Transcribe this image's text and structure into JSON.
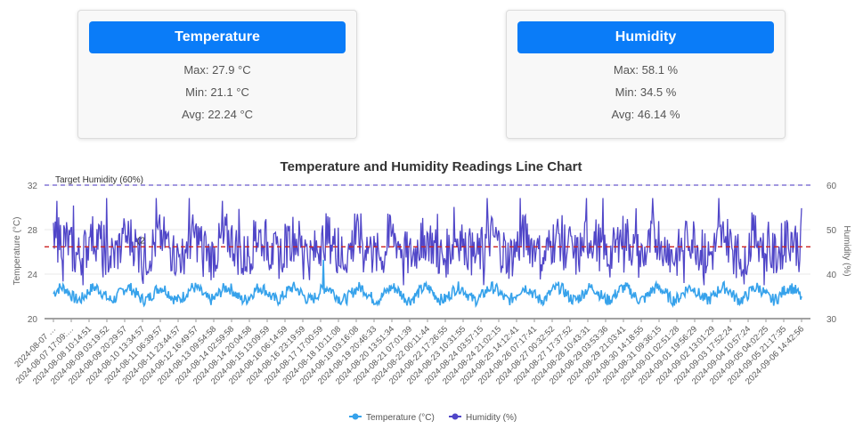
{
  "temperature_card": {
    "title": "Temperature",
    "max": "Max: 27.9 °C",
    "min": "Min: 21.1 °C",
    "avg": "Avg: 22.24 °C"
  },
  "humidity_card": {
    "title": "Humidity",
    "max": "Max: 58.1 %",
    "min": "Min: 34.5 %",
    "avg": "Avg: 46.14 %"
  },
  "colors": {
    "button": "#0a7cf8",
    "temperature": "#36a2eb",
    "humidity": "#5046c8",
    "target_line": "#6a5acd",
    "avg_line": "#cc2222"
  },
  "chart_data": {
    "type": "line",
    "title": "Temperature and Humidity Readings Line Chart",
    "ylabel_left": "Temperature (°C)",
    "ylabel_right": "Humidity (%)",
    "y_left_ticks": [
      20,
      24,
      28,
      32
    ],
    "y_right_ticks": [
      30,
      40,
      50,
      60
    ],
    "ylim_left": [
      20,
      32
    ],
    "ylim_right": [
      30,
      60
    ],
    "target_humidity": 60,
    "target_label": "Target Humidity (60%)",
    "avg_humidity": 46.14,
    "avg_marker_text": "(2",
    "categories": [
      "2024-08-07 …",
      "2024-08-07 17:09:…",
      "2024-08-08 10:14:51",
      "2024-08-09 03:19:52",
      "2024-08-09 20:29:57",
      "2024-08-10 13:34:57",
      "2024-08-11 06:39:57",
      "2024-08-11 23:44:57",
      "2024-08-12 16:49:57",
      "2024-08-13 09:54:58",
      "2024-08-14 02:59:58",
      "2024-08-14 20:04:58",
      "2024-08-15 13:09:59",
      "2024-08-16 06:14:59",
      "2024-08-16 23:19:59",
      "2024-08-17 17:00:59",
      "2024-08-18 10:11:08",
      "2024-08-19 03:16:08",
      "2024-08-19 20:46:33",
      "2024-08-20 13:51:34",
      "2024-08-21 07:01:39",
      "2024-08-22 00:11:44",
      "2024-08-22 17:26:55",
      "2024-08-23 10:31:55",
      "2024-08-24 03:57:15",
      "2024-08-24 21:02:15",
      "2024-08-25 14:12:41",
      "2024-08-26 07:17:41",
      "2024-08-27 00:32:52",
      "2024-08-27 17:37:52",
      "2024-08-28 10:43:31",
      "2024-08-29 03:53:36",
      "2024-08-29 21:03:41",
      "2024-08-30 14:18:55",
      "2024-08-31 09:36:15",
      "2024-09-01 02:51:28",
      "2024-09-01 19:56:29",
      "2024-09-02 13:01:29",
      "2024-09-03 17:52:24",
      "2024-09-04 10:57:24",
      "2024-09-05 04:02:25",
      "2024-09-05 21:17:35",
      "2024-09-06 14:42:56"
    ],
    "series": [
      {
        "name": "Temperature (°C)",
        "axis": "left",
        "min": 21.1,
        "max": 27.9,
        "avg": 22.24
      },
      {
        "name": "Humidity (%)",
        "axis": "right",
        "min": 34.5,
        "max": 58.1,
        "avg": 46.14
      }
    ],
    "legend": [
      "Temperature (°C)",
      "Humidity (%)"
    ],
    "legend_position": "bottom"
  }
}
